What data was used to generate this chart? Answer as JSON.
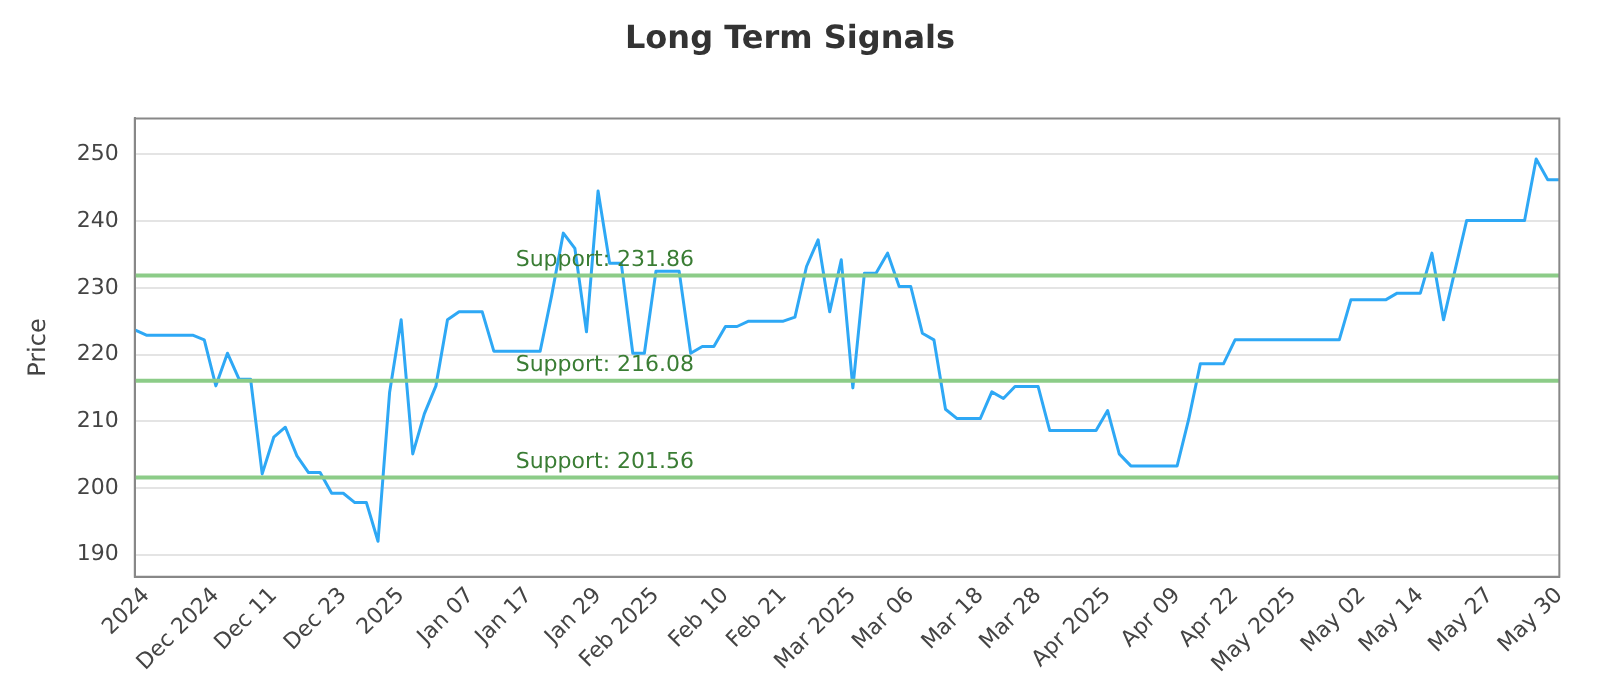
{
  "chart_data": {
    "type": "line",
    "title": "Long Term Signals",
    "ylabel": "Price",
    "categories": [
      null,
      "2024",
      null,
      null,
      null,
      null,
      null,
      "Dec 2024",
      null,
      null,
      null,
      null,
      "Dec 11",
      null,
      null,
      null,
      null,
      null,
      "Dec 23",
      null,
      null,
      null,
      null,
      "2025",
      null,
      null,
      null,
      null,
      null,
      "Jan 07",
      null,
      null,
      null,
      null,
      "Jan 17",
      null,
      null,
      null,
      null,
      null,
      "Jan 29",
      null,
      null,
      null,
      null,
      "Feb 2025",
      null,
      null,
      null,
      null,
      null,
      "Feb 10",
      null,
      null,
      null,
      null,
      "Feb 21",
      null,
      null,
      null,
      null,
      null,
      "Mar 2025",
      null,
      null,
      null,
      null,
      "Mar 06",
      null,
      null,
      null,
      null,
      null,
      "Mar 18",
      null,
      null,
      null,
      null,
      "Mar 28",
      null,
      null,
      null,
      null,
      null,
      "Apr 2025",
      null,
      null,
      null,
      null,
      null,
      "Apr 09",
      null,
      null,
      null,
      null,
      "Apr 22",
      null,
      null,
      null,
      null,
      "May 2025",
      null,
      null,
      null,
      null,
      null,
      "May 02",
      null,
      null,
      null,
      null,
      "May 14",
      null,
      null,
      null,
      null,
      null,
      "May 27",
      null,
      null,
      null,
      null,
      null,
      "May 30"
    ],
    "series": [
      {
        "color": "#2ea8f5",
        "values": [
          223.7,
          222.9,
          222.9,
          222.9,
          222.9,
          222.9,
          222.2,
          215.3,
          220.2,
          216.3,
          216.3,
          202.1,
          207.6,
          209.1,
          204.8,
          202.3,
          202.3,
          199.2,
          199.2,
          197.8,
          197.8,
          192.0,
          214.3,
          225.2,
          205.1,
          211.1,
          215.3,
          225.2,
          226.4,
          226.4,
          226.4,
          220.5,
          220.5,
          220.5,
          220.5,
          220.5,
          228.9,
          238.2,
          235.9,
          223.4,
          244.5,
          233.7,
          233.7,
          220.2,
          220.2,
          232.5,
          232.5,
          232.5,
          220.2,
          221.2,
          221.2,
          224.2,
          224.2,
          225.0,
          225.0,
          225.0,
          225.0,
          225.6,
          233.2,
          237.2,
          226.4,
          234.2,
          215.0,
          232.2,
          232.2,
          235.2,
          230.2,
          230.2,
          223.2,
          222.2,
          211.8,
          210.4,
          210.4,
          210.4,
          214.4,
          213.4,
          215.2,
          215.2,
          215.2,
          208.6,
          208.6,
          208.6,
          208.6,
          208.6,
          211.6,
          205.1,
          203.3,
          203.3,
          203.3,
          203.3,
          203.3,
          210.3,
          218.6,
          218.6,
          218.6,
          222.2,
          222.2,
          222.2,
          222.2,
          222.2,
          222.2,
          222.2,
          222.2,
          222.2,
          222.2,
          228.2,
          228.2,
          228.2,
          228.2,
          229.2,
          229.2,
          229.2,
          235.2,
          225.2,
          232.7,
          240.1,
          240.1,
          240.1,
          240.1,
          240.1,
          240.1,
          249.3,
          246.2,
          246.2
        ]
      }
    ],
    "ylim": [
      186.7,
      255.4
    ],
    "yticks": [
      190,
      200,
      210,
      220,
      230,
      240,
      250
    ],
    "grid": "y",
    "legend": false,
    "marker": "none",
    "line_style": "solid",
    "ref_lines": [
      {
        "axis": "y",
        "value": 231.86,
        "label": "Support: 231.86",
        "color": "#8ccc88"
      },
      {
        "axis": "y",
        "value": 216.08,
        "label": "Support: 216.08",
        "color": "#8ccc88"
      },
      {
        "axis": "y",
        "value": 201.56,
        "label": "Support: 201.56",
        "color": "#8ccc88"
      }
    ]
  }
}
